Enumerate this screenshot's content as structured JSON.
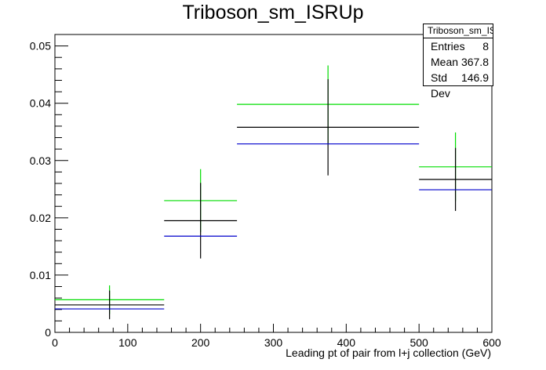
{
  "chart_data": {
    "type": "histogram",
    "title": "Triboson_sm_ISRUp",
    "xlabel": "Leading pt of pair from l+j collection (GeV)",
    "ylabel": "",
    "xlim": [
      0,
      600
    ],
    "ylim": [
      0,
      0.052
    ],
    "x_ticks": [
      0,
      100,
      200,
      300,
      400,
      500,
      600
    ],
    "x_tick_labels": [
      "0",
      "100",
      "200",
      "300",
      "400",
      "500",
      "600"
    ],
    "y_ticks": [
      0,
      0.01,
      0.02,
      0.03,
      0.04,
      0.05
    ],
    "y_tick_labels": [
      "0",
      "0.01",
      "0.02",
      "0.03",
      "0.04",
      "0.05"
    ],
    "bins": [
      {
        "low": 0,
        "high": 150,
        "center": 75
      },
      {
        "low": 150,
        "high": 250,
        "center": 200
      },
      {
        "low": 250,
        "high": 500,
        "center": 375
      },
      {
        "low": 500,
        "high": 600,
        "center": 550
      }
    ],
    "series": [
      {
        "color": "#00dd00",
        "values": [
          0.0057,
          0.023,
          0.0398,
          0.0289
        ],
        "errors": [
          0.0025,
          0.0055,
          0.0068,
          0.006
        ]
      },
      {
        "color": "#000000",
        "values": [
          0.0048,
          0.0195,
          0.0358,
          0.0267
        ],
        "errors": [
          0.0025,
          0.0066,
          0.0084,
          0.0055
        ]
      },
      {
        "color": "#0000cc",
        "values": [
          0.0041,
          0.0168,
          0.0329,
          0.0249
        ],
        "errors": [
          0.0,
          0.0,
          0.0,
          0.0
        ]
      }
    ],
    "stats": {
      "name": "Triboson_sm_ISRUp",
      "rows": [
        {
          "label": "Entries",
          "value": "8"
        },
        {
          "label": "Mean",
          "value": "367.8"
        },
        {
          "label": "Std Dev",
          "value": "146.9"
        }
      ]
    },
    "grid": false,
    "legend": "stats box top-right"
  }
}
